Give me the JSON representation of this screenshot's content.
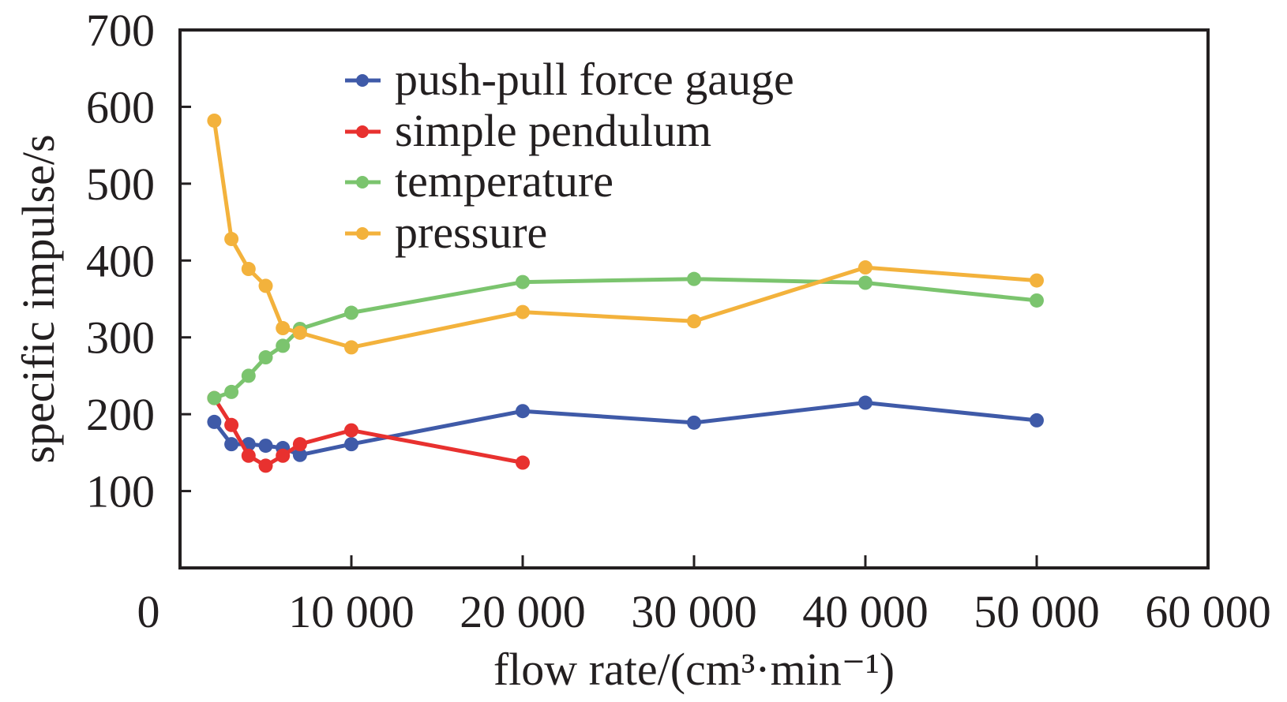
{
  "chart_data": {
    "type": "line",
    "title": "",
    "xlabel": "flow rate/(cm³·min⁻¹)",
    "ylabel": "specific impulse/s",
    "xlim": [
      0,
      60000
    ],
    "ylim": [
      0,
      700
    ],
    "x_ticks": [
      0,
      10000,
      20000,
      30000,
      40000,
      50000,
      60000
    ],
    "x_tick_labels": [
      "0",
      "10 000",
      "20 000",
      "30 000",
      "40 000",
      "50 000",
      "60 000"
    ],
    "y_ticks": [
      100,
      200,
      300,
      400,
      500,
      600,
      700
    ],
    "y_tick_labels": [
      "100",
      "200",
      "300",
      "400",
      "500",
      "600",
      "700"
    ],
    "grid": false,
    "legend_position": "top-center",
    "series": [
      {
        "name": "push-pull force gauge",
        "color": "#3F5AA8",
        "x": [
          2000,
          3000,
          4000,
          5000,
          6000,
          7000,
          10000,
          20000,
          30000,
          40000,
          50000
        ],
        "values": [
          190,
          161,
          161,
          159,
          156,
          147,
          161,
          204,
          189,
          215,
          192
        ]
      },
      {
        "name": "simple pendulum",
        "color": "#E8312F",
        "x": [
          2000,
          3000,
          4000,
          5000,
          6000,
          7000,
          10000,
          20000
        ],
        "values": [
          221,
          186,
          146,
          133,
          146,
          161,
          179,
          137
        ]
      },
      {
        "name": "temperature",
        "color": "#7BC46E",
        "x": [
          2000,
          3000,
          4000,
          5000,
          6000,
          7000,
          10000,
          20000,
          30000,
          40000,
          50000
        ],
        "values": [
          221,
          229,
          250,
          274,
          289,
          311,
          332,
          372,
          376,
          371,
          348
        ]
      },
      {
        "name": "pressure",
        "color": "#F3B23C",
        "x": [
          2000,
          3000,
          4000,
          5000,
          6000,
          7000,
          10000,
          20000,
          30000,
          40000,
          50000
        ],
        "values": [
          582,
          428,
          389,
          367,
          312,
          306,
          287,
          333,
          321,
          391,
          374
        ]
      }
    ]
  }
}
